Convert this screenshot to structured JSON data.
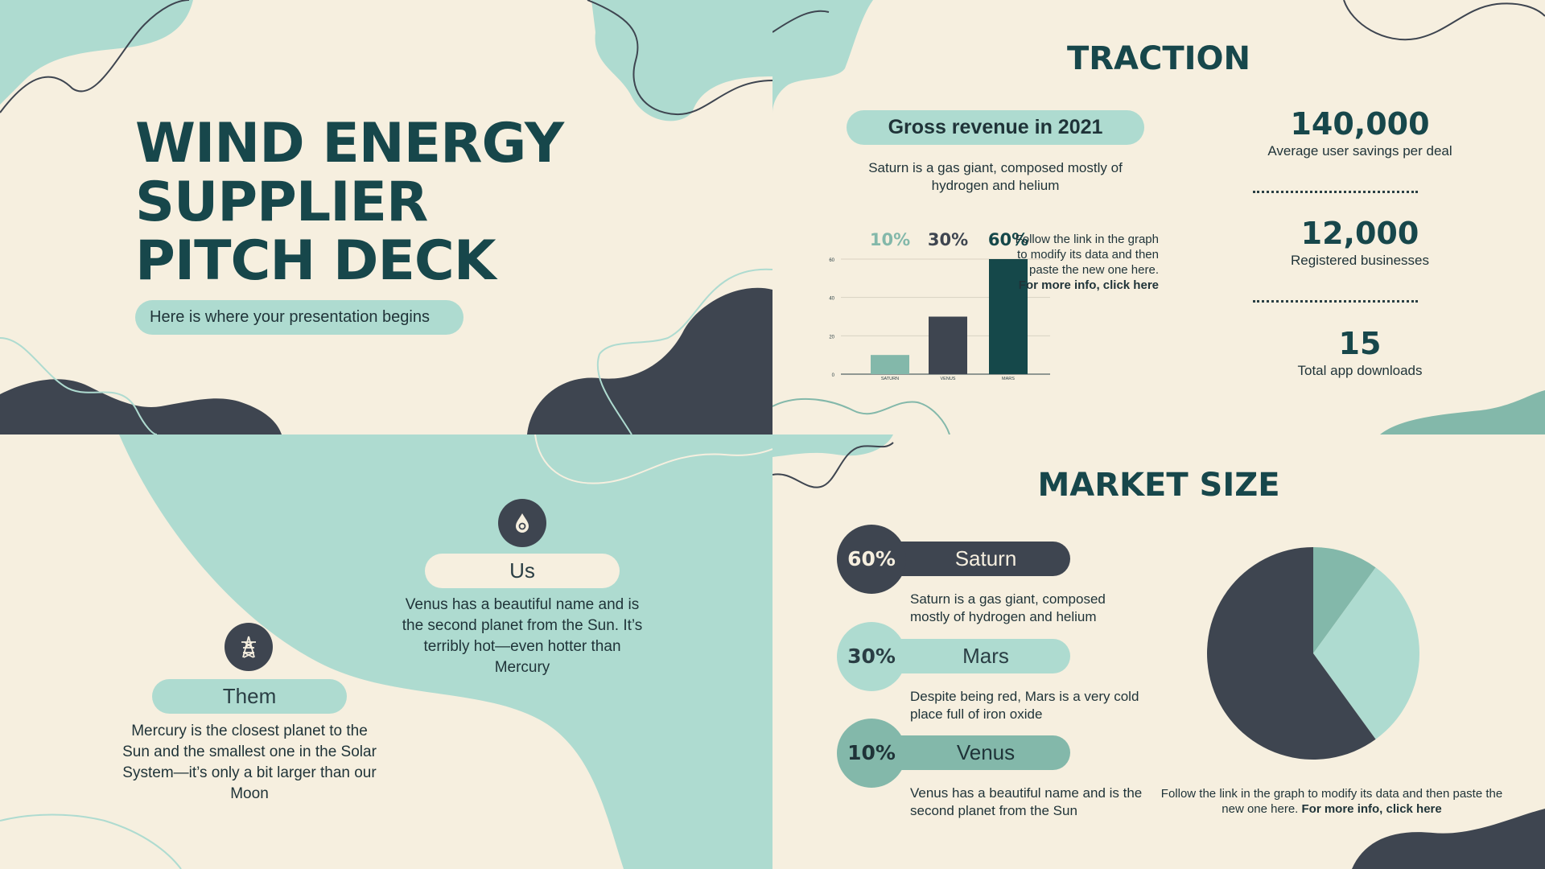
{
  "slide1": {
    "title_lines": [
      "WIND ENERGY",
      "SUPPLIER",
      "PITCH DECK"
    ],
    "subtitle": "Here is where your presentation begins"
  },
  "slide2": {
    "title": "TRACTION",
    "revenue_label": "Gross revenue in 2021",
    "revenue_desc": "Saturn is a gas giant, composed mostly of hydrogen and helium",
    "chart_note_plain": "Follow the link in the graph to modify its data and then paste the new one here.",
    "chart_note_bold": "For more info, click here",
    "stats": [
      {
        "value": "140,000",
        "label": "Average user savings per deal"
      },
      {
        "value": "12,000",
        "label": "Registered businesses"
      },
      {
        "value": "15",
        "label": "Total app downloads"
      }
    ]
  },
  "slide3": {
    "us": {
      "label": "Us",
      "desc": "Venus has a beautiful name and is the second planet from the Sun. It’s terribly hot—even hotter than Mercury",
      "icon": "water-drop-icon"
    },
    "them": {
      "label": "Them",
      "desc": "Mercury is the closest planet to the Sun and the smallest one in the Solar System—it’s only a bit larger than our Moon",
      "icon": "power-tower-icon"
    }
  },
  "slide4": {
    "title": "MARKET SIZE",
    "items": [
      {
        "percent": "60%",
        "name": "Saturn",
        "desc": "Saturn is a gas giant, composed mostly of hydrogen and helium"
      },
      {
        "percent": "30%",
        "name": "Mars",
        "desc": "Despite being red, Mars is a very cold place full of iron oxide"
      },
      {
        "percent": "10%",
        "name": "Venus",
        "desc": "Venus has a beautiful name and is the second planet from the Sun"
      }
    ],
    "pie_note_plain": "Follow the link in the graph to modify its data and then paste the new one here.",
    "pie_note_bold": "For more info, click here"
  },
  "colors": {
    "background": "#f6efdf",
    "mint": "#aedbd0",
    "teal_mid": "#83b8aa",
    "dark_slate": "#3e4550",
    "dark_teal": "#15484a"
  },
  "chart_data": [
    {
      "type": "bar",
      "categories": [
        "SATURN",
        "VENUS",
        "MARS"
      ],
      "values": [
        10,
        30,
        60
      ],
      "data_labels": [
        "10%",
        "30%",
        "60%"
      ],
      "colors": [
        "#83b8aa",
        "#3e4550",
        "#15484a"
      ],
      "yticks": [
        0,
        20,
        40,
        60
      ],
      "ylim": [
        0,
        60
      ],
      "grid": true,
      "title": "",
      "xlabel": "",
      "ylabel": ""
    },
    {
      "type": "pie",
      "categories": [
        "Saturn",
        "Mars",
        "Venus"
      ],
      "values": [
        60,
        30,
        10
      ],
      "colors": [
        "#3e4550",
        "#aedbd0",
        "#83b8aa"
      ],
      "title": ""
    }
  ]
}
